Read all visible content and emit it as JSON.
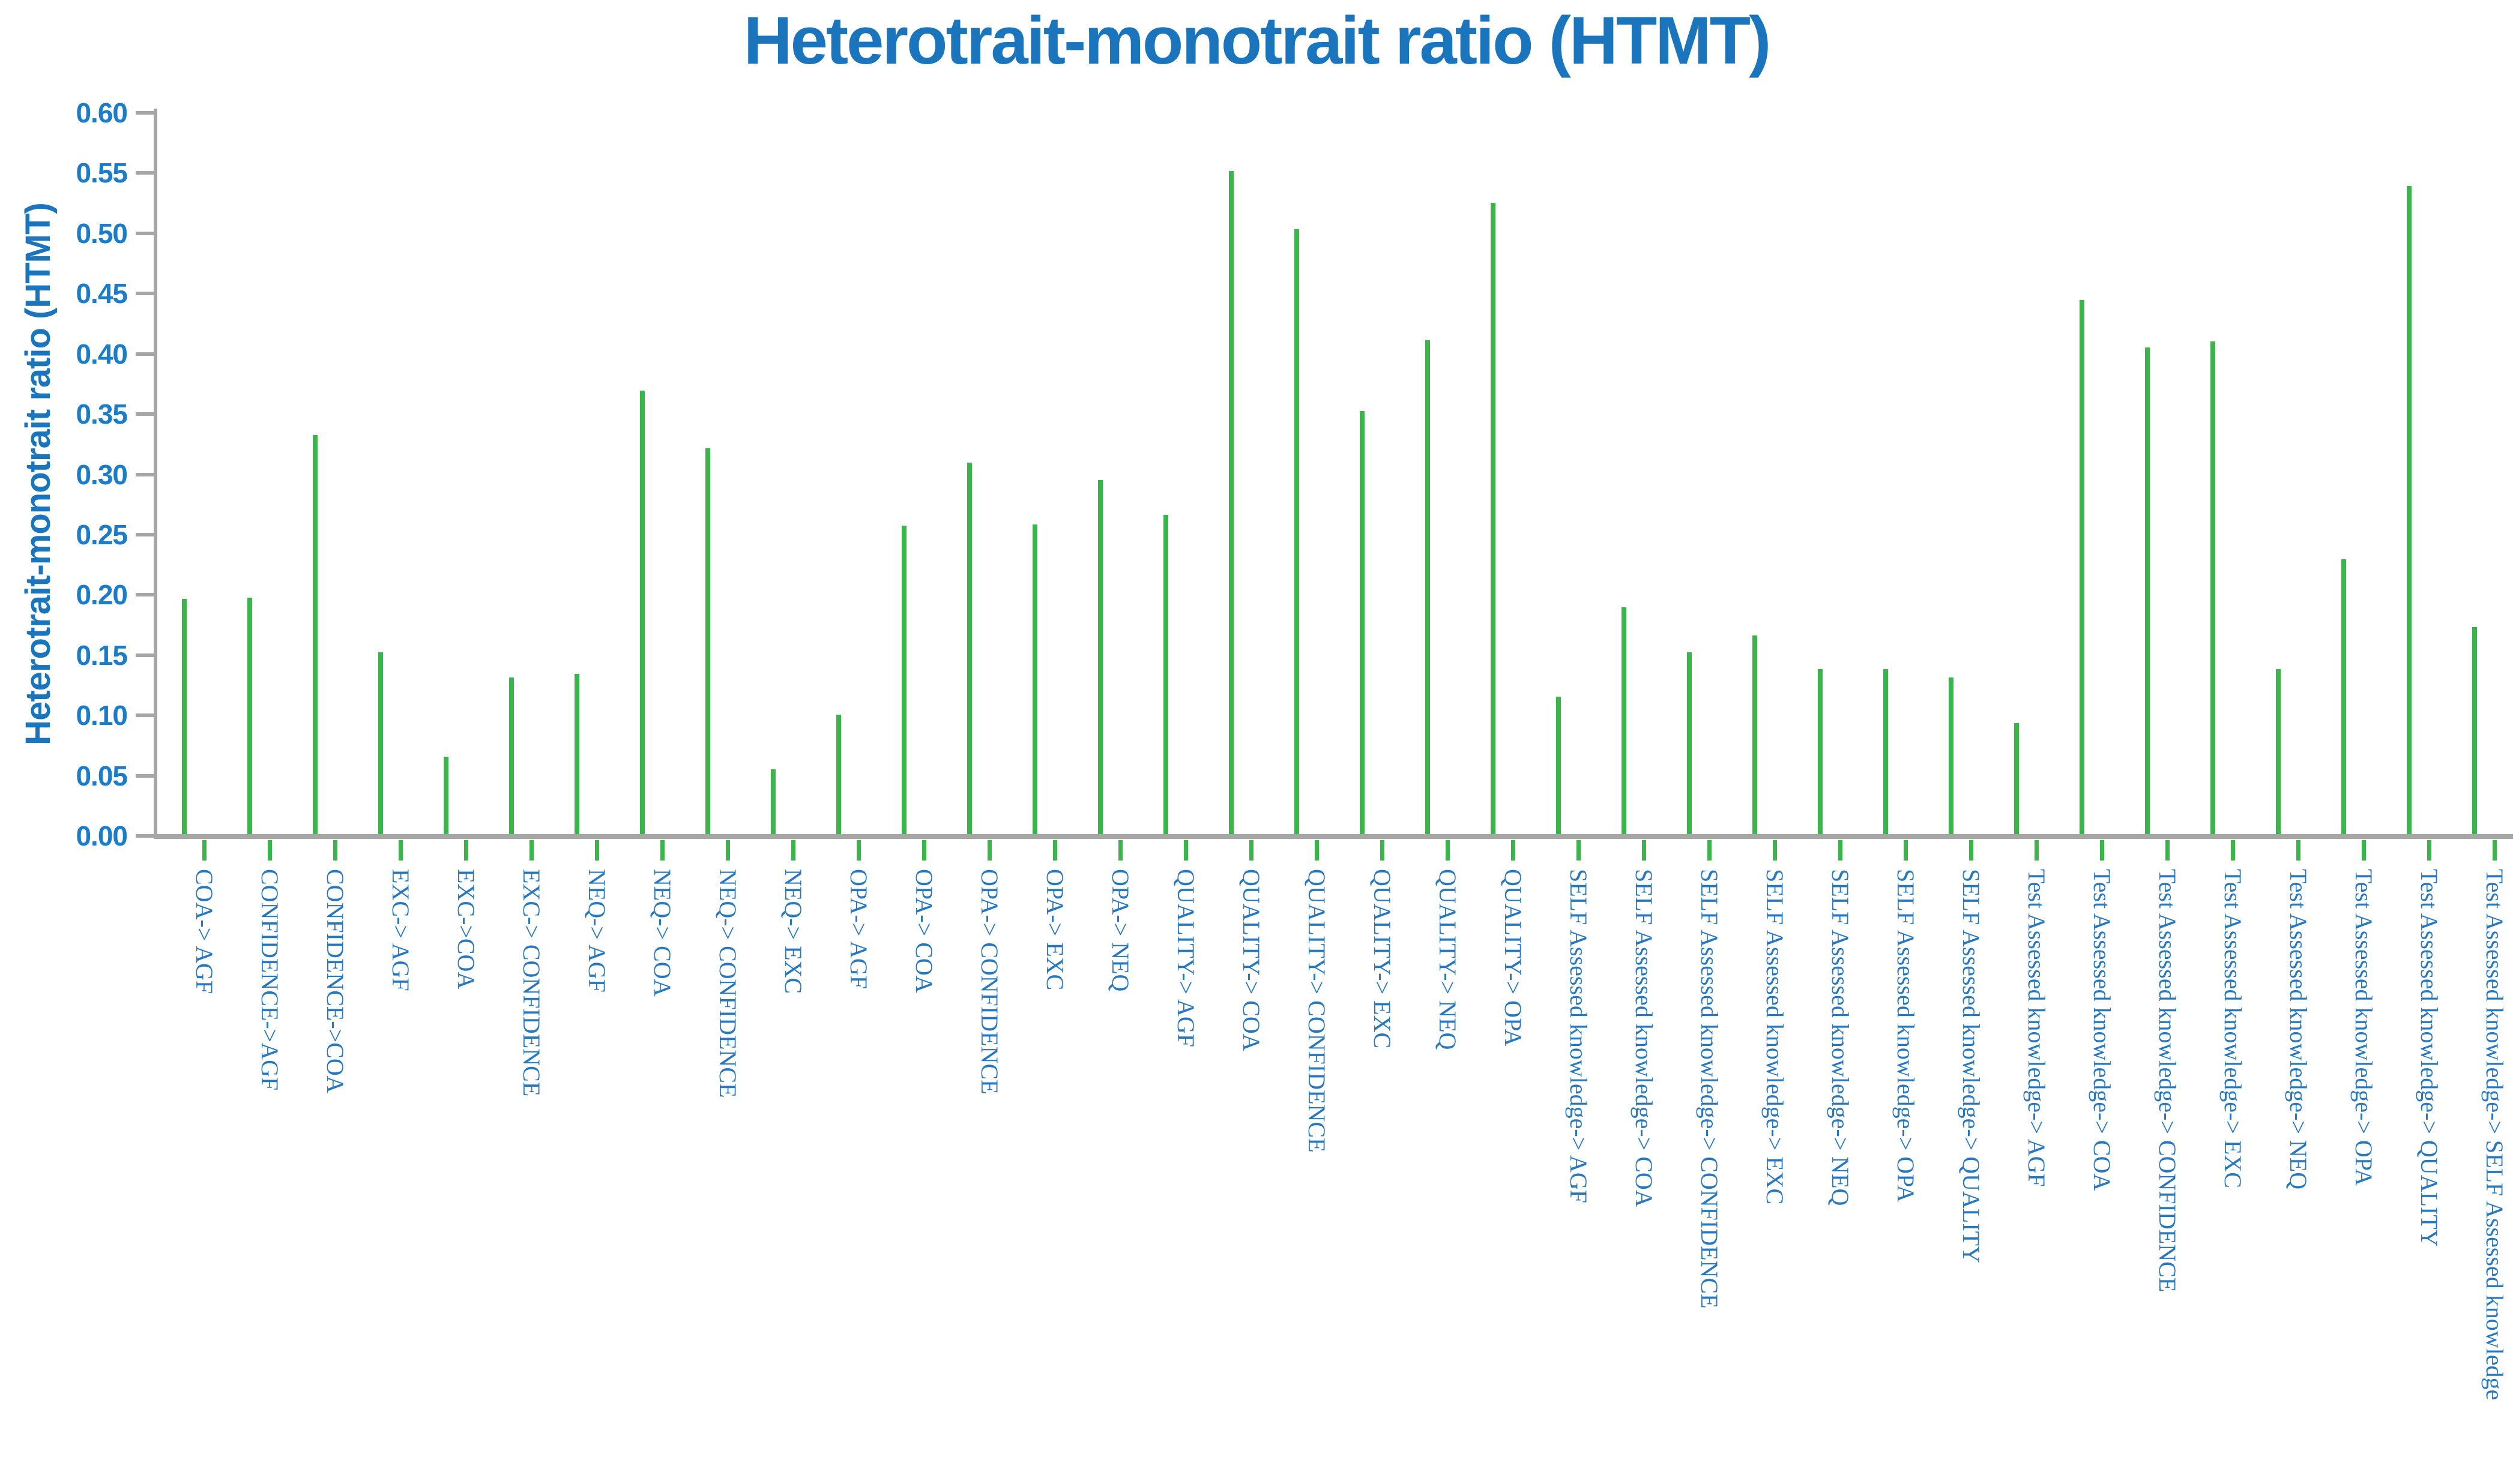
{
  "title": "Heterotrait-monotrait ratio (HTMT)",
  "y_axis": {
    "label": "Heterotrait-monotrait ratio (HTMT)",
    "ticks": [
      "0.00",
      "0.05",
      "0.10",
      "0.15",
      "0.20",
      "0.25",
      "0.30",
      "0.35",
      "0.40",
      "0.45",
      "0.50",
      "0.55",
      "0.60"
    ]
  },
  "colors": {
    "bar": "#39b54a",
    "axis": "#a6a6a6",
    "title": "#1b75bc",
    "tick_label": "#1b7dc9",
    "category_label": "#2878be",
    "x_tick": "#39b54a"
  },
  "chart_data": {
    "type": "bar",
    "title": "Heterotrait-monotrait ratio (HTMT)",
    "xlabel": "",
    "ylabel": "Heterotrait-monotrait ratio (HTMT)",
    "ylim": [
      0,
      0.6
    ],
    "ytick_step": 0.05,
    "grid": false,
    "legend": false,
    "categories": [
      "COA-> AGF",
      "CONFIDENCE->AGF",
      "CONFIDENCE->COA",
      "EXC-> AGF",
      "EXC->COA",
      "EXC-> CONFIDENCE",
      "NEQ-> AGF",
      "NEQ-> COA",
      "NEQ-> CONFIDENCE",
      "NEQ-> EXC",
      "OPA-> AGF",
      "OPA-> COA",
      "OPA-> CONFIDENCE",
      "OPA-> EXC",
      "OPA-> NEQ",
      "QUALITY-> AGF",
      "QUALITY-> COA",
      "QUALITY-> CONFIDENCE",
      "QUALITY-> EXC",
      "QUALITY-> NEQ",
      "QUALITY-> OPA",
      "SELF Assessed knowledge-> AGF",
      "SELF Assessed knowledge-> COA",
      "SELF Assessed knowledge-> CONFIDENCE",
      "SELF Assessed knowledge-> EXC",
      "SELF Assessed knowledge-> NEQ",
      "SELF Assessed knowledge-> OPA",
      "SELF Assessed knowledge-> QUALITY",
      "Test Assessed knowledge-> AGF",
      "Test Assessed knowledge-> COA",
      "Test Assessed knowledge-> CONFIDENCE",
      "Test Assessed knowledge-> EXC",
      "Test Assessed knowledge-> NEQ",
      "Test Assessed knowledge-> OPA",
      "Test Assessed knowledge-> QUALITY",
      "Test Assessed knowledge-> SELF Assessed knowledge"
    ],
    "values": [
      0.195,
      0.196,
      0.331,
      0.151,
      0.064,
      0.13,
      0.133,
      0.368,
      0.32,
      0.054,
      0.099,
      0.256,
      0.308,
      0.257,
      0.294,
      0.265,
      0.55,
      0.502,
      0.351,
      0.41,
      0.524,
      0.114,
      0.188,
      0.151,
      0.165,
      0.137,
      0.137,
      0.13,
      0.092,
      0.443,
      0.404,
      0.409,
      0.137,
      0.228,
      0.538,
      0.172
    ]
  }
}
